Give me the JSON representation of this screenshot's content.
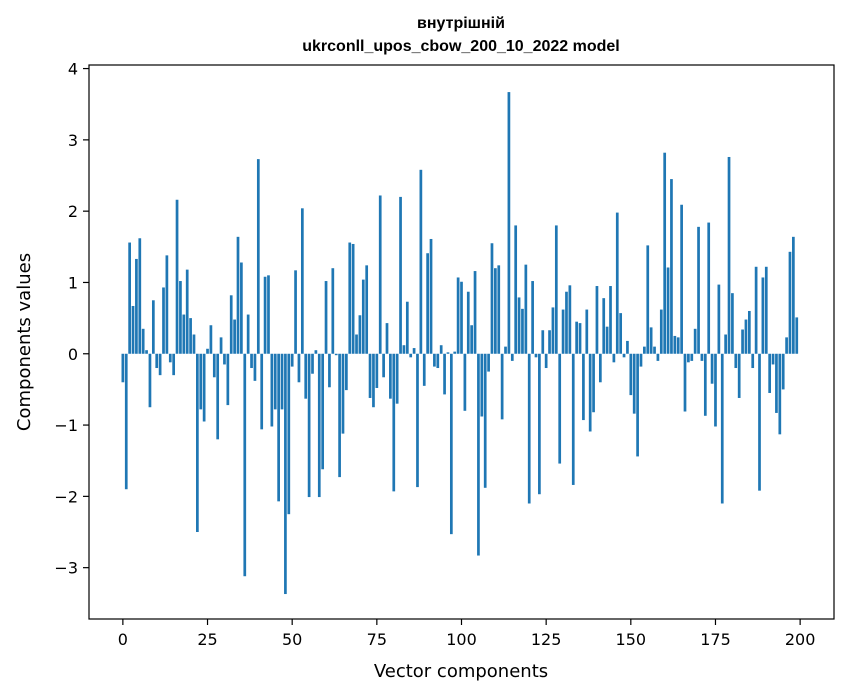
{
  "chart_data": {
    "type": "bar",
    "title_line1": "внутрішній",
    "title_line2": "ukrconll_upos_cbow_200_10_2022 model",
    "xlabel": "Vector components",
    "ylabel": "Components values",
    "xlim": [
      -10,
      210
    ],
    "ylim": [
      -3.72,
      4.05
    ],
    "xticks": [
      0,
      25,
      50,
      75,
      100,
      125,
      150,
      175,
      200
    ],
    "xtick_labels": [
      "0",
      "25",
      "50",
      "75",
      "100",
      "125",
      "150",
      "175",
      "200"
    ],
    "yticks": [
      -3,
      -2,
      -1,
      0,
      1,
      2,
      3,
      4
    ],
    "ytick_labels": [
      "−3",
      "−2",
      "−1",
      "0",
      "1",
      "2",
      "3",
      "4"
    ],
    "bar_color": "#1f77b4",
    "grid": false,
    "x": [
      0,
      1,
      2,
      3,
      4,
      5,
      6,
      7,
      8,
      9,
      10,
      11,
      12,
      13,
      14,
      15,
      16,
      17,
      18,
      19,
      20,
      21,
      22,
      23,
      24,
      25,
      26,
      27,
      28,
      29,
      30,
      31,
      32,
      33,
      34,
      35,
      36,
      37,
      38,
      39,
      40,
      41,
      42,
      43,
      44,
      45,
      46,
      47,
      48,
      49,
      50,
      51,
      52,
      53,
      54,
      55,
      56,
      57,
      58,
      59,
      60,
      61,
      62,
      63,
      64,
      65,
      66,
      67,
      68,
      69,
      70,
      71,
      72,
      73,
      74,
      75,
      76,
      77,
      78,
      79,
      80,
      81,
      82,
      83,
      84,
      85,
      86,
      87,
      88,
      89,
      90,
      91,
      92,
      93,
      94,
      95,
      96,
      97,
      98,
      99,
      100,
      101,
      102,
      103,
      104,
      105,
      106,
      107,
      108,
      109,
      110,
      111,
      112,
      113,
      114,
      115,
      116,
      117,
      118,
      119,
      120,
      121,
      122,
      123,
      124,
      125,
      126,
      127,
      128,
      129,
      130,
      131,
      132,
      133,
      134,
      135,
      136,
      137,
      138,
      139,
      140,
      141,
      142,
      143,
      144,
      145,
      146,
      147,
      148,
      149,
      150,
      151,
      152,
      153,
      154,
      155,
      156,
      157,
      158,
      159,
      160,
      161,
      162,
      163,
      164,
      165,
      166,
      167,
      168,
      169,
      170,
      171,
      172,
      173,
      174,
      175,
      176,
      177,
      178,
      179,
      180,
      181,
      182,
      183,
      184,
      185,
      186,
      187,
      188,
      189,
      190,
      191,
      192,
      193,
      194,
      195,
      196,
      197,
      198,
      199
    ],
    "values": [
      -0.4,
      -1.9,
      1.56,
      0.67,
      1.33,
      1.62,
      0.35,
      0.05,
      -0.75,
      0.75,
      -0.2,
      -0.3,
      0.93,
      1.38,
      -0.12,
      -0.3,
      2.16,
      1.02,
      0.55,
      1.18,
      0.5,
      0.27,
      -2.5,
      -0.78,
      -0.95,
      0.07,
      0.4,
      -0.33,
      -1.2,
      0.23,
      -0.15,
      -0.72,
      0.82,
      0.48,
      1.64,
      1.28,
      -3.12,
      0.55,
      -0.2,
      -0.38,
      2.73,
      -1.06,
      1.08,
      1.1,
      -1.02,
      -0.78,
      -2.07,
      -0.78,
      -3.37,
      -2.25,
      -0.18,
      1.17,
      -0.4,
      2.04,
      -0.63,
      -2.01,
      -0.28,
      0.05,
      -2.01,
      -1.62,
      1.02,
      -0.47,
      1.2,
      -0.02,
      -1.73,
      -1.12,
      -0.51,
      1.56,
      1.54,
      0.27,
      0.54,
      1.04,
      1.24,
      -0.62,
      -0.75,
      -0.48,
      2.22,
      -0.33,
      0.43,
      -0.63,
      -1.93,
      -0.7,
      2.2,
      0.12,
      0.73,
      -0.05,
      0.08,
      -1.87,
      2.58,
      -0.45,
      1.41,
      1.61,
      -0.18,
      -0.2,
      0.12,
      -0.57,
      0.02,
      -2.53,
      0.03,
      1.07,
      1.01,
      -0.8,
      0.87,
      0.4,
      1.16,
      -2.83,
      -0.88,
      -1.88,
      -0.25,
      1.55,
      1.2,
      1.24,
      -0.92,
      0.1,
      3.67,
      -0.1,
      1.8,
      0.79,
      0.63,
      1.25,
      -2.1,
      1.02,
      -0.05,
      -1.97,
      0.33,
      -0.2,
      0.33,
      0.65,
      1.8,
      -1.54,
      0.62,
      0.87,
      0.96,
      -1.84,
      0.45,
      0.43,
      -0.93,
      0.62,
      -1.09,
      -0.82,
      0.95,
      -0.4,
      0.78,
      0.38,
      0.95,
      -0.12,
      1.98,
      0.57,
      -0.05,
      0.18,
      -0.58,
      -0.84,
      -1.44,
      -0.18,
      0.1,
      1.52,
      0.37,
      0.1,
      -0.1,
      0.62,
      2.82,
      1.21,
      2.45,
      0.25,
      0.23,
      2.09,
      -0.81,
      -0.12,
      -0.1,
      0.35,
      1.78,
      -0.1,
      -0.87,
      1.84,
      -0.42,
      -1.02,
      0.97,
      -2.1,
      0.27,
      2.76,
      0.85,
      -0.2,
      -0.62,
      0.34,
      0.48,
      0.6,
      -0.2,
      1.22,
      -1.92,
      1.07,
      1.22,
      -0.55,
      -0.15,
      -0.83,
      -1.13,
      -0.5,
      0.23,
      1.43,
      1.64,
      0.51
    ]
  }
}
